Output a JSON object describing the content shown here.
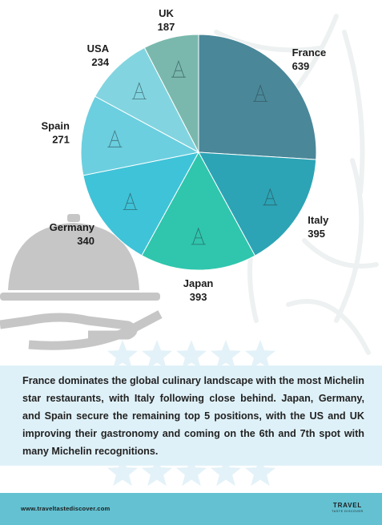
{
  "chart_data": {
    "type": "pie",
    "title": "",
    "slices": [
      {
        "label": "France",
        "value": 639,
        "color": "#4a8799",
        "icon": "eiffel-tower-icon"
      },
      {
        "label": "Italy",
        "value": 395,
        "color": "#2ca4b5",
        "icon": "leaning-tower-icon"
      },
      {
        "label": "Japan",
        "value": 393,
        "color": "#2fc6ad",
        "icon": "pagoda-icon"
      },
      {
        "label": "Germany",
        "value": 340,
        "color": "#3fc3d8",
        "icon": "brandenburg-gate-icon"
      },
      {
        "label": "Spain",
        "value": 271,
        "color": "#6bcfdf",
        "icon": "sagrada-familia-icon"
      },
      {
        "label": "USA",
        "value": 234,
        "color": "#82d5e0",
        "icon": "statue-of-liberty-icon"
      },
      {
        "label": "UK",
        "value": 187,
        "color": "#7ab8ad",
        "icon": "big-ben-icon"
      }
    ]
  },
  "caption": {
    "text": "France dominates the global culinary landscape with the most Michelin star restaurants, with Italy following close behind. Japan, Germany, and Spain secure the remaining top 5 positions, with the US and UK improving their gastronomy and coming on the 6th and 7th spot with many Michelin recognitions."
  },
  "footer": {
    "url": "www.traveltastediscover.com",
    "logo_main": "TRAVEL",
    "logo_sub": "TASTE DISCOVER"
  },
  "decor": {
    "background_icons": [
      "palm-leaf-icon",
      "cloche-icon",
      "serving-hand-icon",
      "star-icon"
    ],
    "colors": {
      "footer": "#63c1d2",
      "caption_band": "#dff1f8",
      "decor_gray": "#c6c6c6"
    }
  }
}
